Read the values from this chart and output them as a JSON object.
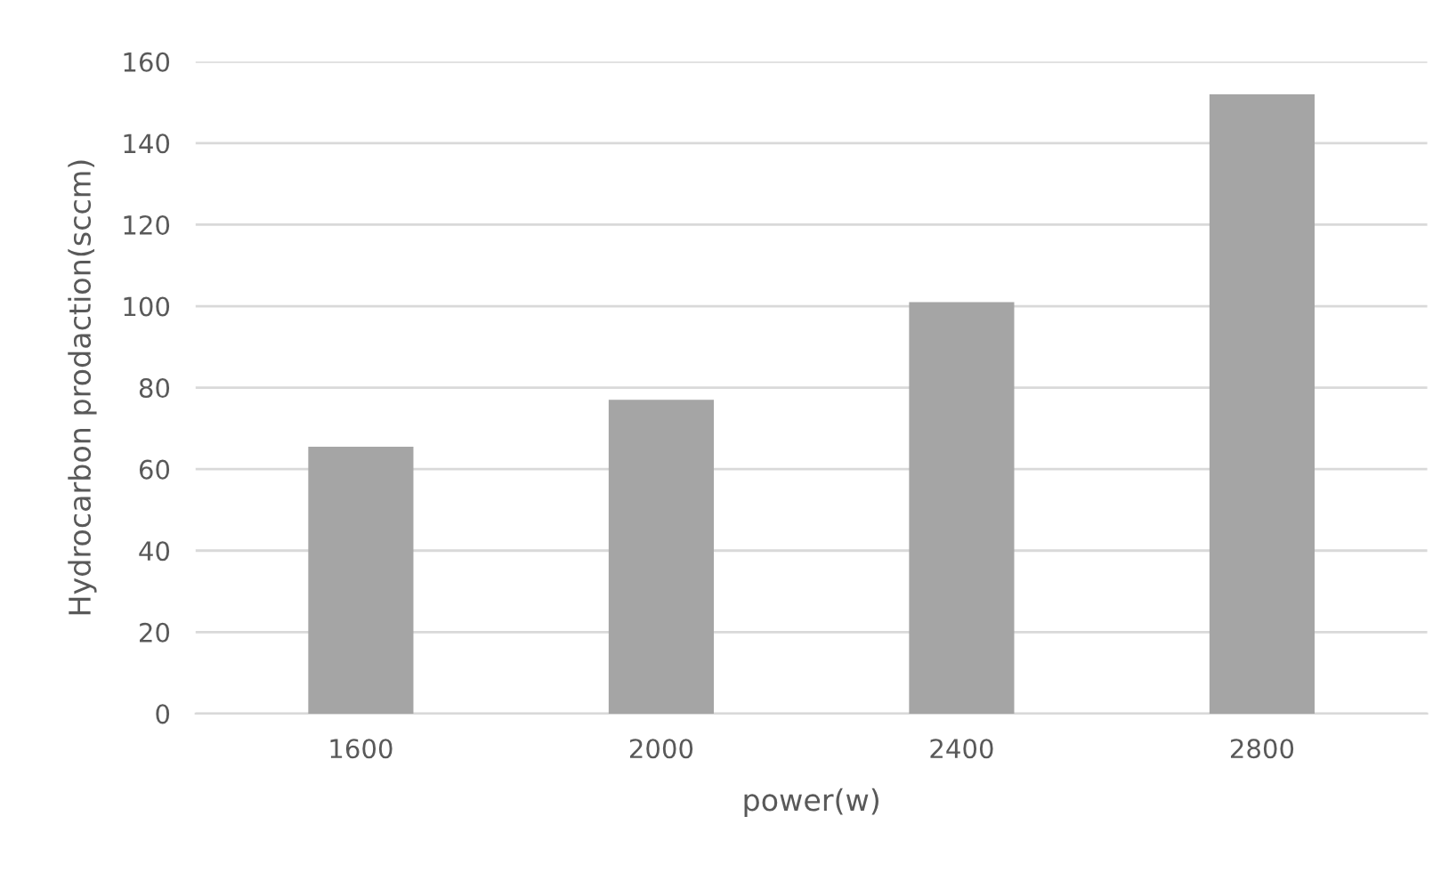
{
  "chart_data": {
    "type": "bar",
    "xlabel": "power(w)",
    "ylabel": "Hydrocarbon prodaction(sccm)",
    "categories": [
      "1600",
      "2000",
      "2400",
      "2800"
    ],
    "values": [
      65.5,
      77,
      101,
      152
    ],
    "color": "#a5a5a5",
    "ylim": [
      0,
      160
    ],
    "yticks": [
      0,
      20,
      40,
      60,
      80,
      100,
      120,
      140,
      160
    ],
    "grid": "y"
  }
}
